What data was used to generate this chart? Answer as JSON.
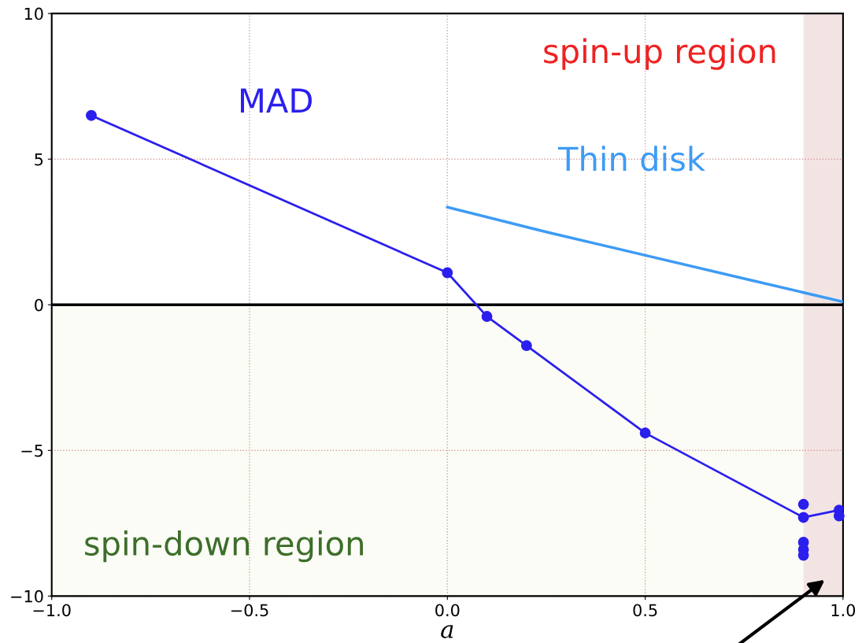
{
  "chart_data": {
    "type": "line",
    "xlabel": "a",
    "xlim": [
      -1.0,
      1.0
    ],
    "ylim": [
      -10,
      10
    ],
    "xticks": [
      {
        "value": -1.0,
        "label": "−1.0"
      },
      {
        "value": -0.5,
        "label": "−0.5"
      },
      {
        "value": 0.0,
        "label": "0.0"
      },
      {
        "value": 0.5,
        "label": "0.5"
      },
      {
        "value": 1.0,
        "label": "1.0"
      }
    ],
    "yticks": [
      {
        "value": -10,
        "label": "−10"
      },
      {
        "value": -5,
        "label": "−5"
      },
      0,
      5,
      10
    ],
    "grid": true,
    "marker": "circle",
    "line_style": "solid",
    "series": [
      {
        "name": "MAD",
        "color": "#2b1fee",
        "x": [
          -0.9,
          0.0,
          0.1,
          0.2,
          0.5,
          0.9,
          0.99
        ],
        "values": [
          6.5,
          1.1,
          -0.4,
          -1.4,
          -4.4,
          -7.3,
          -7.05
        ]
      },
      {
        "type": "scatter",
        "color": "#2b1fee",
        "x": [
          0.9,
          0.9,
          0.9,
          0.9,
          0.99
        ],
        "values": [
          -6.85,
          -8.15,
          -8.4,
          -8.6,
          -7.25
        ]
      },
      {
        "name": "Thin disk",
        "color": "#3d9bf5",
        "marker": "none",
        "x": [
          0.0,
          0.25,
          0.5,
          0.75,
          1.0
        ],
        "values": [
          3.35,
          2.5,
          1.7,
          0.9,
          0.1
        ]
      }
    ],
    "ref_lines": [
      {
        "axis": "y",
        "value": 0,
        "color": "#000000"
      }
    ],
    "bands": [
      {
        "axis": "y",
        "from": -10,
        "to": 0,
        "color": "#fbfcf6"
      },
      {
        "axis": "x",
        "from": 0.9,
        "to": 1.0,
        "color": "#f3e4e4"
      }
    ],
    "annotations": [
      "spin-up region",
      "spin-down region"
    ]
  }
}
